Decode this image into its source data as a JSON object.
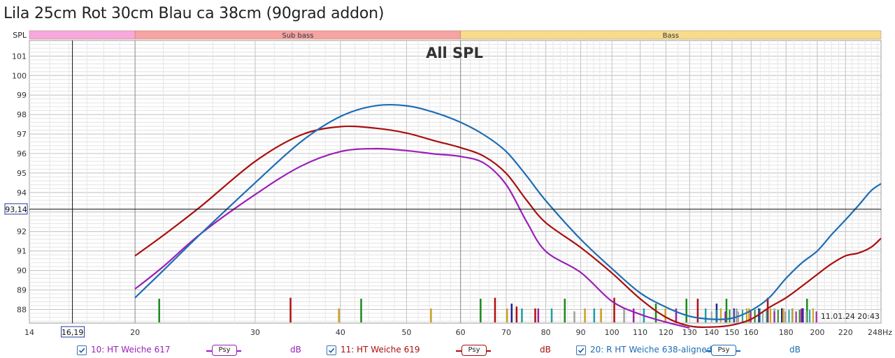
{
  "title": "Lila 25cm Rot 30cm Blau ca 38cm (90grad addon)",
  "chart_data": {
    "type": "line",
    "title": "All SPL",
    "xscale": "log",
    "xlim": [
      14,
      248
    ],
    "ylim": [
      87.3,
      101.8
    ],
    "x_ticks": [
      14,
      20,
      30,
      40,
      50,
      60,
      70,
      80,
      90,
      100,
      110,
      120,
      130,
      140,
      150,
      160,
      180,
      200,
      220,
      248
    ],
    "x_tick_labels": [
      "14",
      "20",
      "30",
      "40",
      "50",
      "60",
      "70",
      "80",
      "90",
      "100",
      "110",
      "120",
      "130",
      "140",
      "150",
      "160",
      "180",
      "200",
      "220",
      "248Hz"
    ],
    "y_ticks": [
      88,
      89,
      90,
      91,
      92,
      94,
      95,
      96,
      97,
      98,
      99,
      100,
      101
    ],
    "y_axis_label": "SPL",
    "cursor": {
      "x": 16.19,
      "y": 93.14,
      "x_label": "16,19",
      "y_label": "93,14"
    },
    "bands": [
      {
        "name": "",
        "from": 14,
        "to": 20,
        "color": "#f7a8dc"
      },
      {
        "name": "Sub bass",
        "from": 20,
        "to": 60,
        "color": "#f6a3a3"
      },
      {
        "name": "Bass",
        "from": 60,
        "to": 248,
        "color": "#f7dc8c"
      }
    ],
    "timestamp": "11.01.24 20:43",
    "series": [
      {
        "name": "10: HT Weiche 617",
        "color": "#9b1fb8",
        "x": [
          20,
          22,
          25,
          30,
          35,
          40,
          45,
          50,
          55,
          60,
          65,
          70,
          75,
          80,
          90,
          100,
          110,
          120,
          130
        ],
        "y": [
          89.05,
          90.2,
          91.9,
          93.9,
          95.35,
          96.1,
          96.25,
          96.15,
          95.98,
          95.85,
          95.5,
          94.4,
          92.5,
          90.98,
          89.9,
          88.42,
          87.75,
          87.35,
          87.05
        ]
      },
      {
        "name": "11: HT Weiche 619",
        "color": "#aa0e0e",
        "x": [
          20,
          22,
          25,
          30,
          35,
          40,
          45,
          50,
          55,
          60,
          65,
          70,
          75,
          80,
          90,
          100,
          110,
          120,
          130,
          140,
          150,
          160,
          170,
          180,
          190,
          200,
          210,
          220,
          230,
          240,
          248
        ],
        "y": [
          90.75,
          91.8,
          93.3,
          95.6,
          96.95,
          97.38,
          97.3,
          97.05,
          96.65,
          96.3,
          95.85,
          94.98,
          93.6,
          92.45,
          91.18,
          89.87,
          88.55,
          87.6,
          87.15,
          87.1,
          87.2,
          87.5,
          88.1,
          88.6,
          89.2,
          89.8,
          90.35,
          90.75,
          90.9,
          91.2,
          91.65
        ]
      },
      {
        "name": "20: R HT Weiche 638-aligned",
        "color": "#1c6db5",
        "x": [
          20,
          22,
          25,
          30,
          35,
          40,
          45,
          50,
          55,
          60,
          65,
          70,
          75,
          80,
          90,
          100,
          110,
          120,
          130,
          140,
          150,
          160,
          170,
          180,
          190,
          200,
          210,
          220,
          230,
          240,
          248
        ],
        "y": [
          88.6,
          90.0,
          91.9,
          94.5,
          96.6,
          97.9,
          98.45,
          98.45,
          98.1,
          97.6,
          96.95,
          96.1,
          94.85,
          93.58,
          91.6,
          90.1,
          88.85,
          88.12,
          87.65,
          87.5,
          87.55,
          87.95,
          88.6,
          89.6,
          90.4,
          91.0,
          91.85,
          92.6,
          93.35,
          94.1,
          94.45
        ]
      }
    ],
    "legend_units": "dB",
    "legend_badge": "Psy"
  },
  "legend": [
    {
      "name": "10: HT Weiche 617",
      "badge": "Psy",
      "unit": "dB",
      "color": "#9b1fb8"
    },
    {
      "name": "11: HT Weiche 619",
      "badge": "Psy",
      "unit": "dB",
      "color": "#aa0e0e"
    },
    {
      "name": "20: R HT Weiche 638-aligned",
      "badge": "Psy",
      "unit": "dB",
      "color": "#1c6db5"
    }
  ]
}
